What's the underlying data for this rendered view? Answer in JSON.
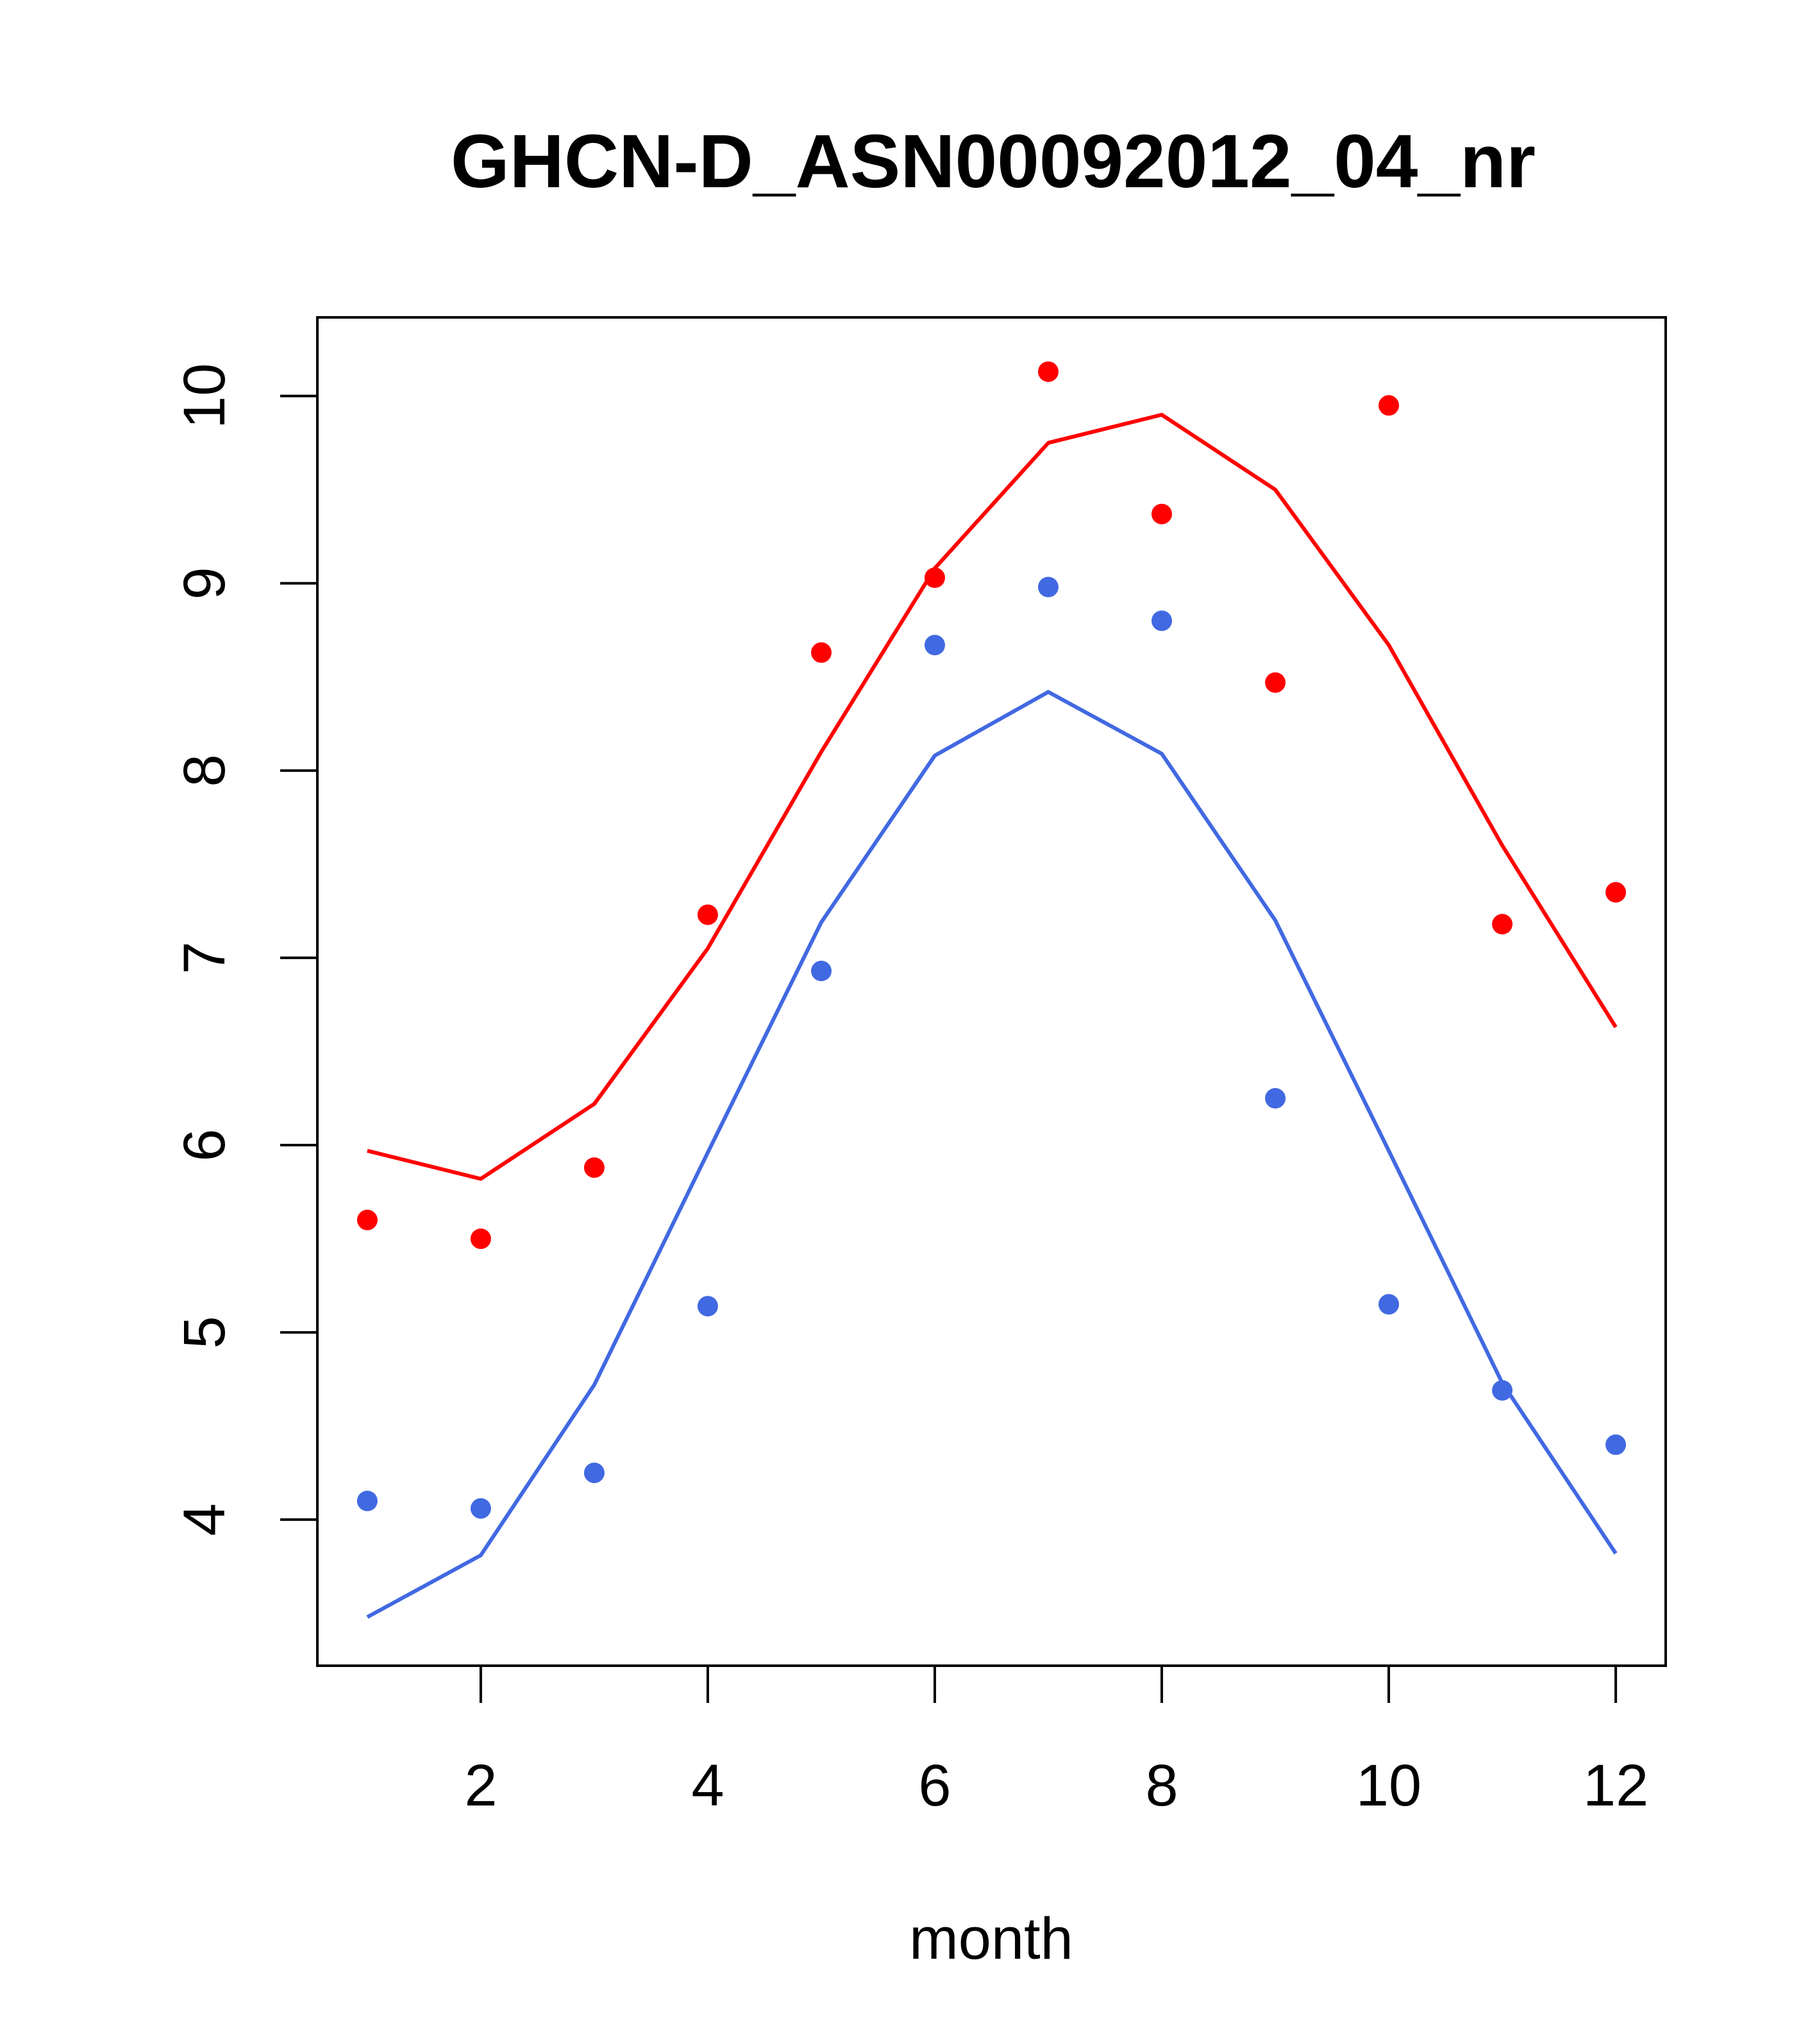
{
  "chart_data": {
    "type": "line",
    "title": "GHCN-D_ASN00092012_04_nr",
    "xlabel": "month",
    "ylabel": "",
    "xlim": [
      0.56,
      12.44
    ],
    "ylim": [
      3.22,
      10.42
    ],
    "xticks": [
      2,
      4,
      6,
      8,
      10,
      12
    ],
    "yticks": [
      4,
      5,
      6,
      7,
      8,
      9,
      10
    ],
    "grid": false,
    "series": [
      {
        "color": "#ff0000",
        "x": [
          1,
          2,
          3,
          4,
          5,
          6,
          7,
          8,
          9,
          10,
          11,
          12
        ],
        "line": [
          5.97,
          5.82,
          6.22,
          7.05,
          8.1,
          9.08,
          9.75,
          9.9,
          9.5,
          8.67,
          7.6,
          6.63
        ],
        "points": [
          5.6,
          5.5,
          5.88,
          7.23,
          8.63,
          9.03,
          10.13,
          9.37,
          8.47,
          9.95,
          7.18,
          7.35
        ]
      },
      {
        "color": "#4169e1",
        "x": [
          1,
          2,
          3,
          4,
          5,
          6,
          7,
          8,
          9,
          10,
          11,
          12
        ],
        "line": [
          3.48,
          3.81,
          4.72,
          5.96,
          7.19,
          8.08,
          8.42,
          8.09,
          7.2,
          5.97,
          4.73,
          3.82
        ],
        "points": [
          4.1,
          4.06,
          4.25,
          5.14,
          6.93,
          8.67,
          8.98,
          8.8,
          6.25,
          5.15,
          4.69,
          4.4
        ]
      }
    ]
  }
}
